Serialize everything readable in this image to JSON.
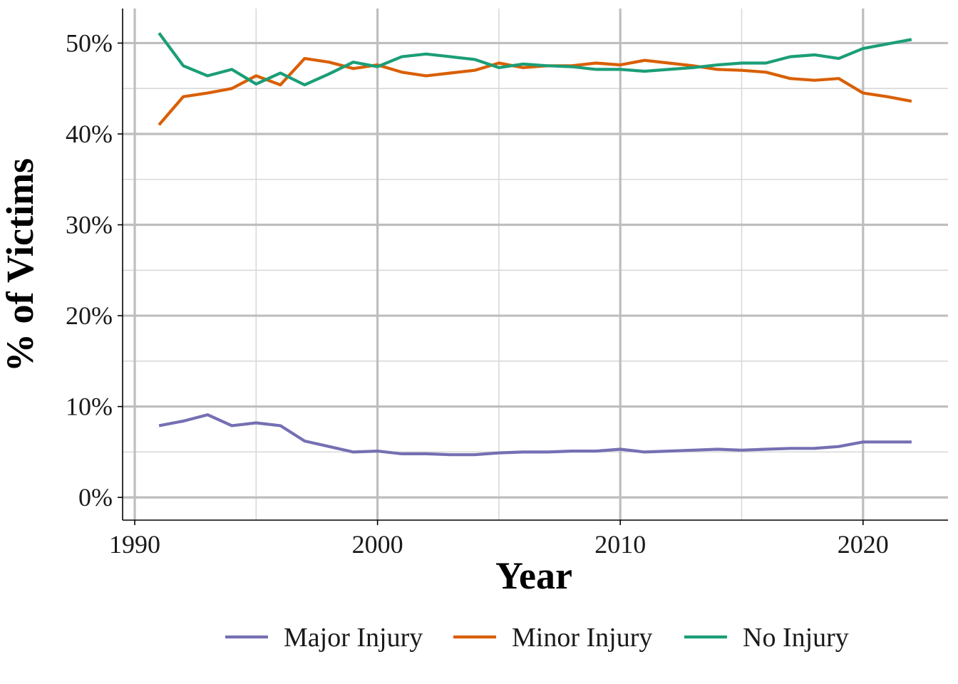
{
  "chart_data": {
    "type": "line",
    "xlabel": "Year",
    "ylabel": "% of Victims",
    "xlim": [
      1989.5,
      1992.0
    ],
    "ylim": [
      -2.5,
      53.8
    ],
    "x_ticks": [
      1990,
      2000,
      2010,
      2020
    ],
    "y_ticks": [
      0,
      10,
      20,
      30,
      40,
      50
    ],
    "y_tick_suffix": "%",
    "grid": true,
    "legend_position": "bottom",
    "x": [
      1991,
      1992,
      1993,
      1994,
      1995,
      1996,
      1997,
      1998,
      1999,
      2000,
      2001,
      2002,
      2003,
      2004,
      2005,
      2006,
      2007,
      2008,
      2009,
      2010,
      2011,
      2012,
      2013,
      2014,
      2015,
      2016,
      2017,
      2018,
      2019,
      2020,
      2021,
      2022
    ],
    "series": [
      {
        "name": "Major Injury",
        "color": "#7570b3",
        "values": [
          7.9,
          8.4,
          9.1,
          7.9,
          8.2,
          7.9,
          6.2,
          5.6,
          5.0,
          5.1,
          4.8,
          4.8,
          4.7,
          4.7,
          4.9,
          5.0,
          5.0,
          5.1,
          5.1,
          5.3,
          5.0,
          5.1,
          5.2,
          5.3,
          5.2,
          5.3,
          5.4,
          5.4,
          5.6,
          6.1,
          6.1,
          6.1
        ]
      },
      {
        "name": "Minor Injury",
        "color": "#d95f02",
        "values": [
          41.0,
          44.1,
          44.5,
          45.0,
          46.4,
          45.4,
          48.3,
          47.9,
          47.2,
          47.6,
          46.8,
          46.4,
          46.7,
          47.0,
          47.8,
          47.3,
          47.5,
          47.5,
          47.8,
          47.6,
          48.1,
          47.8,
          47.5,
          47.1,
          47.0,
          46.8,
          46.1,
          45.9,
          46.1,
          44.5,
          44.1,
          43.6
        ]
      },
      {
        "name": "No Injury",
        "color": "#1b9e77",
        "values": [
          51.1,
          47.5,
          46.4,
          47.1,
          45.5,
          46.7,
          45.4,
          46.6,
          47.9,
          47.4,
          48.5,
          48.8,
          48.5,
          48.2,
          47.3,
          47.7,
          47.5,
          47.4,
          47.1,
          47.1,
          46.9,
          47.1,
          47.3,
          47.6,
          47.8,
          47.8,
          48.5,
          48.7,
          48.3,
          49.4,
          49.9,
          50.4
        ]
      }
    ]
  }
}
